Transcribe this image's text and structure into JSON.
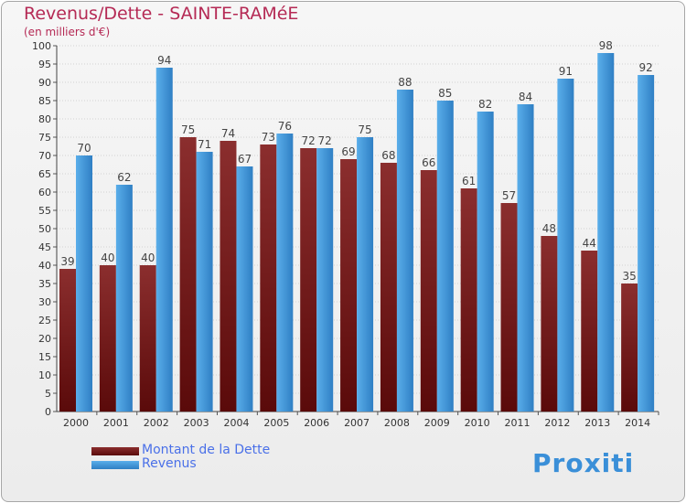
{
  "title": "Revenus/Dette - SAINTE-RAMéE",
  "subtitle": "(en milliers d'€)",
  "logo_text": "Proxiti",
  "colors": {
    "title": "#b52a55",
    "dette_top": "#8b2e2e",
    "dette_bottom": "#5a0a0a",
    "revenus_top": "#5aaeea",
    "revenus_bottom": "#2f7fc4",
    "legend_text": "#4a70e8"
  },
  "legend": {
    "dette_label": "Montant de la Dette",
    "revenus_label": "Revenus"
  },
  "chart_data": {
    "type": "bar",
    "categories": [
      "2000",
      "2001",
      "2002",
      "2003",
      "2004",
      "2005",
      "2006",
      "2007",
      "2008",
      "2009",
      "2010",
      "2011",
      "2012",
      "2013",
      "2014"
    ],
    "series": [
      {
        "name": "Montant de la Dette",
        "values": [
          39,
          40,
          40,
          75,
          74,
          73,
          72,
          69,
          68,
          66,
          61,
          57,
          48,
          44,
          35
        ]
      },
      {
        "name": "Revenus",
        "values": [
          70,
          62,
          94,
          71,
          67,
          76,
          72,
          75,
          88,
          85,
          82,
          84,
          91,
          98,
          92
        ]
      }
    ],
    "ylim": [
      0,
      100
    ],
    "ytick_step": 5,
    "grid": true,
    "legend_position": "bottom-left"
  }
}
